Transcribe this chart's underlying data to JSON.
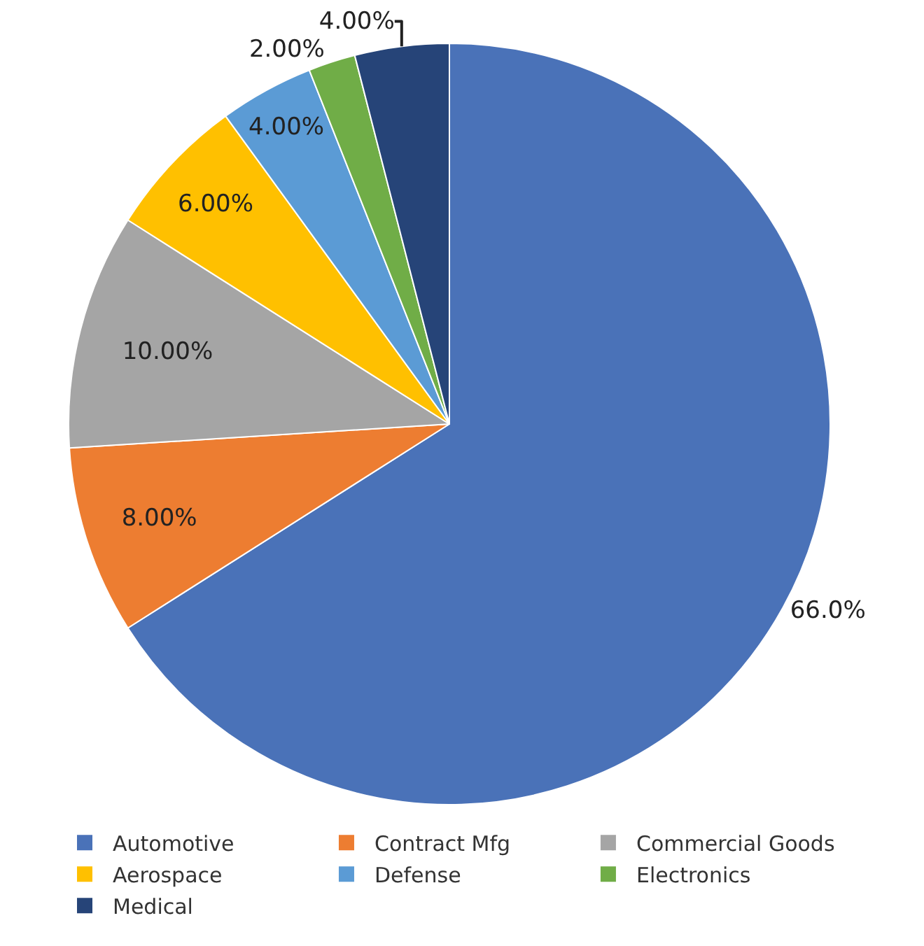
{
  "chart_data": {
    "type": "pie",
    "categories": [
      "Automotive",
      "Contract Mfg",
      "Commercial Goods",
      "Aerospace",
      "Defense",
      "Electronics",
      "Medical"
    ],
    "values": [
      66,
      8,
      10,
      6,
      4,
      2,
      4
    ],
    "colors": [
      "#4a72b8",
      "#ed7d31",
      "#a5a5a5",
      "#ffc000",
      "#5b9bd5",
      "#70ad47",
      "#264478"
    ],
    "value_labels": [
      "66.0%",
      "8.00%",
      "10.00%",
      "6.00%",
      "4.00%",
      "2.00%",
      "4.00%"
    ],
    "legend": "bottom"
  }
}
